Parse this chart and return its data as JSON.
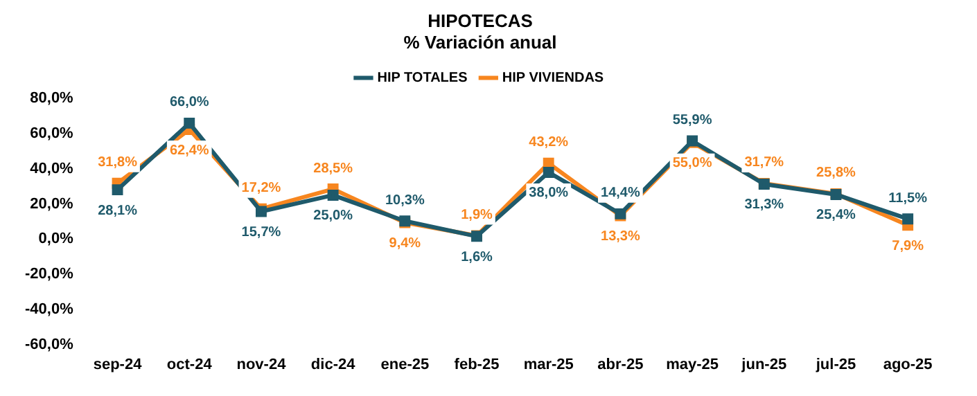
{
  "chart_data": {
    "type": "line",
    "title": "HIPOTECAS",
    "subtitle": "% Variación anual",
    "categories": [
      "sep-24",
      "oct-24",
      "nov-24",
      "dic-24",
      "ene-25",
      "feb-25",
      "mar-25",
      "abr-25",
      "may-25",
      "jun-25",
      "jul-25",
      "ago-25"
    ],
    "series": [
      {
        "name": "HIP TOTALES",
        "color": "#1f5a6b",
        "values": [
          28.1,
          66.0,
          15.7,
          25.0,
          10.3,
          1.6,
          38.0,
          14.4,
          55.9,
          31.3,
          25.4,
          11.5
        ],
        "value_labels": [
          "28,1%",
          "66,0%",
          "15,7%",
          "25,0%",
          "10,3%",
          "1,6%",
          "38,0%",
          "14,4%",
          "55,9%",
          "31,3%",
          "25,4%",
          "11,5%"
        ]
      },
      {
        "name": "HIP VIVIENDAS",
        "color": "#f7861f",
        "values": [
          31.8,
          62.4,
          17.2,
          28.5,
          9.4,
          1.9,
          43.2,
          13.3,
          55.0,
          31.7,
          25.8,
          7.9
        ],
        "value_labels": [
          "31,8%",
          "62,4%",
          "17,2%",
          "28,5%",
          "9,4%",
          "1,9%",
          "43,2%",
          "13,3%",
          "55,0%",
          "31,7%",
          "25,8%",
          "7,9%"
        ]
      }
    ],
    "ylim": [
      -60,
      80
    ],
    "yticks": [
      {
        "value": -60,
        "label": "-60,0%"
      },
      {
        "value": -40,
        "label": "-40,0%"
      },
      {
        "value": -20,
        "label": "-20,0%"
      },
      {
        "value": 0,
        "label": "0,0%"
      },
      {
        "value": 20,
        "label": "20,0%"
      },
      {
        "value": 40,
        "label": "40,0%"
      },
      {
        "value": 60,
        "label": "60,0%"
      },
      {
        "value": 80,
        "label": "80,0%"
      }
    ],
    "grid": false,
    "legend": "top",
    "marker": "square",
    "line_style": "solid"
  }
}
